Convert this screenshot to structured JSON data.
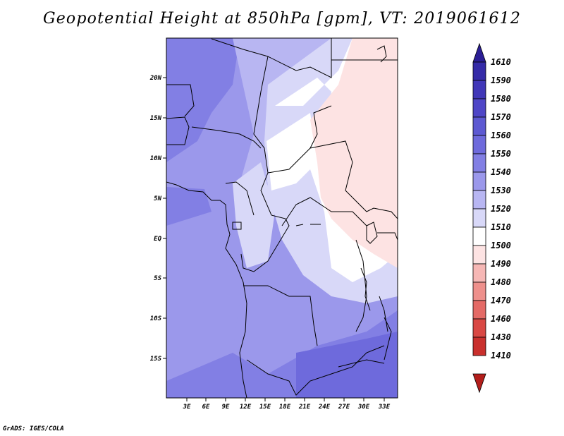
{
  "title": "Geopotential Height at 850hPa [gpm], VT: 2019061612",
  "footer": "GrADS: IGES/COLA",
  "map": {
    "lat_ticks": [
      "20N",
      "15N",
      "10N",
      "5N",
      "EQ",
      "5S",
      "10S",
      "15S"
    ],
    "lon_ticks": [
      "3E",
      "6E",
      "9E",
      "12E",
      "15E",
      "18E",
      "21E",
      "24E",
      "27E",
      "30E",
      "33E"
    ]
  },
  "colorbar": {
    "labels": [
      "1610",
      "1590",
      "1580",
      "1570",
      "1560",
      "1550",
      "1540",
      "1530",
      "1520",
      "1510",
      "1500",
      "1490",
      "1480",
      "1470",
      "1460",
      "1430",
      "1410"
    ],
    "colors": [
      "#2b1e95",
      "#352ba8",
      "#4137b8",
      "#4f46c7",
      "#5d59d2",
      "#6e6adc",
      "#827fe4",
      "#9b98eb",
      "#b8b6f2",
      "#d8d8f8",
      "#ffffff",
      "#fde3e3",
      "#f6b7b5",
      "#ee908c",
      "#e46a66",
      "#d94844",
      "#c9302d",
      "#b31e1b"
    ]
  }
}
